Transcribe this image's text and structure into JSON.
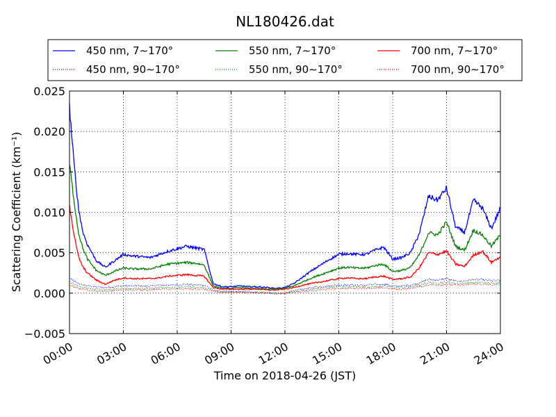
{
  "chart_data": {
    "type": "line",
    "title": "NL180426.dat",
    "xlabel": "Time on 2018-04-26 (JST)",
    "ylabel": "Scattering Coefficient (km⁻¹)",
    "xlim": [
      0,
      24
    ],
    "ylim": [
      -0.005,
      0.025
    ],
    "grid": true,
    "legend_position": "top (above plot), 3 columns",
    "x_ticks": [
      0,
      3,
      6,
      9,
      12,
      15,
      18,
      21,
      24
    ],
    "x_tick_labels": [
      "00:00",
      "03:00",
      "06:00",
      "09:00",
      "12:00",
      "15:00",
      "18:00",
      "21:00",
      "24:00"
    ],
    "y_ticks": [
      -0.005,
      0.0,
      0.005,
      0.01,
      0.015,
      0.02,
      0.025
    ],
    "y_tick_labels": [
      "−0.005",
      "0.000",
      "0.005",
      "0.010",
      "0.015",
      "0.020",
      "0.025"
    ],
    "x_hours": [
      0,
      0.25,
      0.5,
      0.75,
      1,
      1.5,
      2,
      2.5,
      3,
      3.5,
      4,
      4.5,
      5,
      5.5,
      6,
      6.5,
      7,
      7.5,
      8,
      8.5,
      9,
      9.5,
      10,
      10.5,
      11,
      11.5,
      12,
      12.5,
      13,
      13.5,
      14,
      14.5,
      15,
      15.5,
      16,
      16.5,
      17,
      17.5,
      18,
      18.5,
      19,
      19.5,
      20,
      20.5,
      21,
      21.5,
      22,
      22.5,
      23,
      23.5,
      24
    ],
    "series": [
      {
        "name": "450 nm, 7∼170°",
        "color": "#0000ff",
        "style": "solid",
        "values": [
          0.023,
          0.016,
          0.0105,
          0.0075,
          0.006,
          0.004,
          0.0032,
          0.004,
          0.0048,
          0.0046,
          0.0045,
          0.0044,
          0.0048,
          0.0052,
          0.0055,
          0.0058,
          0.0056,
          0.0054,
          0.0012,
          0.0008,
          0.0008,
          0.0009,
          0.0008,
          0.0008,
          0.0007,
          0.0006,
          0.0007,
          0.0012,
          0.002,
          0.0028,
          0.0035,
          0.0042,
          0.0048,
          0.0049,
          0.0048,
          0.0048,
          0.0053,
          0.0057,
          0.0042,
          0.0044,
          0.005,
          0.0075,
          0.012,
          0.0115,
          0.013,
          0.0082,
          0.0075,
          0.0115,
          0.0105,
          0.008,
          0.0105
        ]
      },
      {
        "name": "550 nm, 7∼170°",
        "color": "#008000",
        "style": "solid",
        "values": [
          0.016,
          0.0115,
          0.0075,
          0.0055,
          0.0042,
          0.0028,
          0.0022,
          0.0027,
          0.0031,
          0.003,
          0.003,
          0.003,
          0.0033,
          0.0036,
          0.0037,
          0.0038,
          0.0037,
          0.0035,
          0.0009,
          0.0006,
          0.0006,
          0.0007,
          0.0006,
          0.0006,
          0.0005,
          0.0005,
          0.0006,
          0.0009,
          0.0014,
          0.0019,
          0.0023,
          0.0027,
          0.0031,
          0.0032,
          0.0031,
          0.0031,
          0.0034,
          0.0036,
          0.0027,
          0.0028,
          0.0032,
          0.0048,
          0.0075,
          0.0072,
          0.0088,
          0.0058,
          0.0053,
          0.0078,
          0.0072,
          0.0058,
          0.0072
        ]
      },
      {
        "name": "700 nm, 7∼170°",
        "color": "#ff0000",
        "style": "solid",
        "values": [
          0.011,
          0.0072,
          0.0045,
          0.0032,
          0.0025,
          0.0016,
          0.0011,
          0.0016,
          0.0019,
          0.0018,
          0.0018,
          0.0018,
          0.0019,
          0.0021,
          0.0022,
          0.0023,
          0.0022,
          0.0021,
          0.0007,
          0.0005,
          0.0005,
          0.0005,
          0.0005,
          0.0005,
          0.0004,
          0.0004,
          0.0005,
          0.0007,
          0.001,
          0.0012,
          0.0014,
          0.0016,
          0.0018,
          0.0019,
          0.0018,
          0.0018,
          0.002,
          0.0021,
          0.0017,
          0.0018,
          0.002,
          0.0032,
          0.005,
          0.0048,
          0.0052,
          0.0036,
          0.0033,
          0.0047,
          0.0052,
          0.0038,
          0.0045
        ]
      },
      {
        "name": "450 nm, 90∼170°",
        "color": "#0000ff",
        "style": "dotted",
        "values": [
          0.0018,
          0.0015,
          0.0012,
          0.001,
          0.0009,
          0.0008,
          0.0007,
          0.0008,
          0.0009,
          0.0009,
          0.0009,
          0.0009,
          0.001,
          0.001,
          0.001,
          0.0011,
          0.001,
          0.001,
          0.0004,
          0.0002,
          0.0002,
          0.0002,
          0.0002,
          0.0001,
          0.0001,
          0.0,
          0.0,
          0.0003,
          0.0005,
          0.0007,
          0.0008,
          0.0009,
          0.001,
          0.001,
          0.001,
          0.001,
          0.0011,
          0.0011,
          0.0009,
          0.0009,
          0.001,
          0.0013,
          0.0017,
          0.0016,
          0.0018,
          0.0015,
          0.0015,
          0.0017,
          0.0017,
          0.0015,
          0.0016
        ]
      },
      {
        "name": "550 nm, 90∼170°",
        "color": "#008000",
        "style": "dotted",
        "values": [
          0.0014,
          0.0011,
          0.0009,
          0.0007,
          0.0006,
          0.0005,
          0.0004,
          0.0005,
          0.0006,
          0.0006,
          0.0006,
          0.0006,
          0.0007,
          0.0007,
          0.0007,
          0.0008,
          0.0007,
          0.0007,
          0.0003,
          0.0001,
          0.0001,
          0.0001,
          0.0001,
          0.0001,
          0.0,
          0.0,
          0.0,
          0.0002,
          0.0003,
          0.0005,
          0.0006,
          0.0007,
          0.0008,
          0.0008,
          0.0008,
          0.0008,
          0.0008,
          0.0009,
          0.0007,
          0.0007,
          0.0008,
          0.001,
          0.0013,
          0.0012,
          0.0014,
          0.0012,
          0.0012,
          0.0013,
          0.0013,
          0.0012,
          0.0013
        ]
      },
      {
        "name": "700 nm, 90∼170°",
        "color": "#ff0000",
        "style": "dotted",
        "values": [
          0.001,
          0.0008,
          0.0006,
          0.0005,
          0.0004,
          0.0003,
          0.0002,
          0.0003,
          0.0004,
          0.0004,
          0.0004,
          0.0004,
          0.0005,
          0.0005,
          0.0005,
          0.0005,
          0.0005,
          0.0005,
          0.0002,
          0.0001,
          0.0001,
          0.0001,
          0.0001,
          0.0,
          0.0,
          -0.0001,
          0.0,
          0.0001,
          0.0002,
          0.0003,
          0.0004,
          0.0005,
          0.0006,
          0.0006,
          0.0006,
          0.0006,
          0.0006,
          0.0007,
          0.0005,
          0.0005,
          0.0006,
          0.0008,
          0.001,
          0.001,
          0.0011,
          0.001,
          0.001,
          0.0011,
          0.0011,
          0.001,
          0.0011
        ]
      }
    ]
  }
}
